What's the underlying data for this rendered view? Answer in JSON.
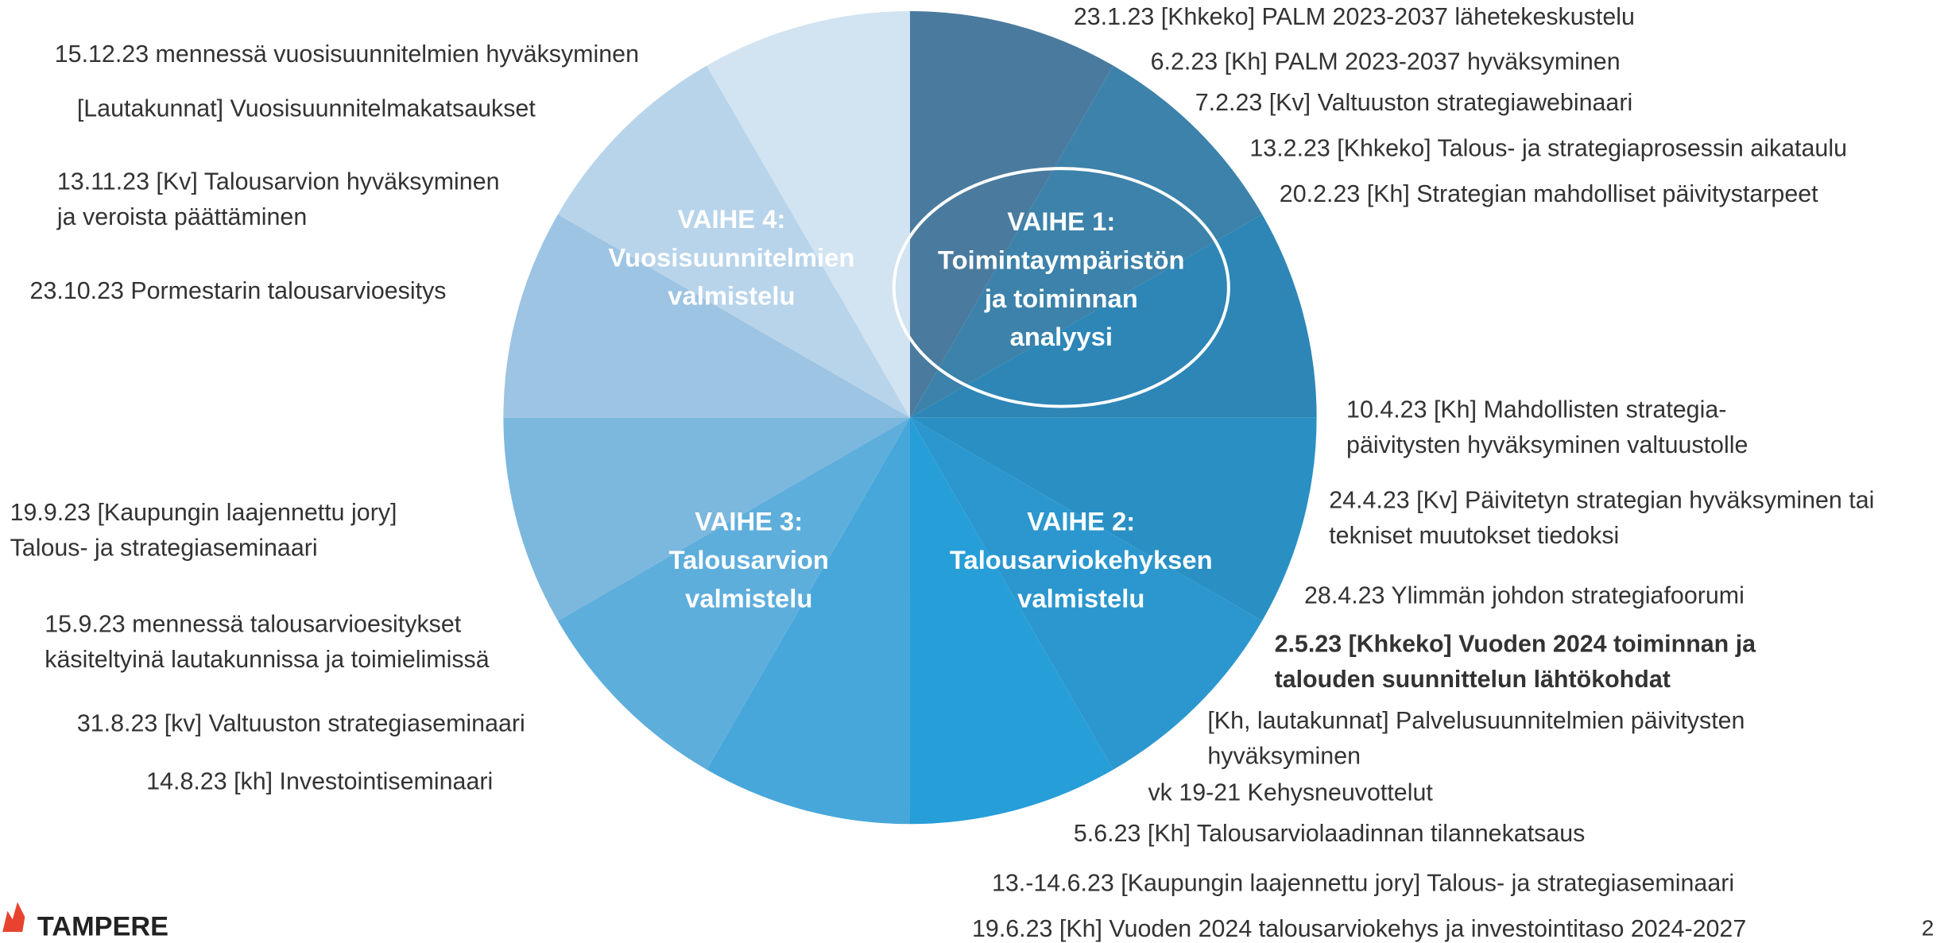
{
  "phases": [
    {
      "lines": [
        "VAIHE 1:",
        "Toimintaympäristön",
        "ja toiminnan",
        "analyysi"
      ]
    },
    {
      "lines": [
        "VAIHE 2:",
        "Talousarviokehyksen",
        "valmistelu"
      ]
    },
    {
      "lines": [
        "VAIHE 3:",
        "Talousarvion",
        "valmistelu"
      ]
    },
    {
      "lines": [
        "VAIHE 4:",
        "Vuosisuunnitelmien",
        "valmistelu"
      ]
    }
  ],
  "events": [
    {
      "lines": [
        "23.1.23 [Khkeko] PALM 2023-2037 lähetekeskustelu"
      ]
    },
    {
      "lines": [
        "6.2.23 [Kh] PALM 2023-2037 hyväksyminen"
      ]
    },
    {
      "lines": [
        "7.2.23 [Kv] Valtuuston strategiawebinaari"
      ]
    },
    {
      "lines": [
        "13.2.23 [Khkeko] Talous- ja strategiaprosessin aikataulu"
      ]
    },
    {
      "lines": [
        "20.2.23 [Kh] Strategian mahdolliset päivitystarpeet"
      ]
    },
    {
      "lines": [
        "10.4.23 [Kh] Mahdollisten strategia-",
        "päivitysten hyväksyminen valtuustolle"
      ]
    },
    {
      "lines": [
        "24.4.23 [Kv] Päivitetyn strategian hyväksyminen tai",
        "tekniset muutokset tiedoksi"
      ]
    },
    {
      "lines": [
        "28.4.23 Ylimmän johdon strategiafoorumi"
      ]
    },
    {
      "lines": [
        "2.5.23 [Khkeko] Vuoden 2024 toiminnan ja",
        "talouden suunnittelun lähtökohdat"
      ]
    },
    {
      "lines": [
        "[Kh, lautakunnat] Palvelusuunnitelmien päivitysten",
        "hyväksyminen"
      ]
    },
    {
      "lines": [
        "vk 19-21 Kehysneuvottelut"
      ]
    },
    {
      "lines": [
        "5.6.23 [Kh] Talousarviolaadinnan tilannekatsaus"
      ]
    },
    {
      "lines": [
        "13.-14.6.23 [Kaupungin laajennettu jory] Talous- ja strategiaseminaari"
      ]
    },
    {
      "lines": [
        "19.6.23 [Kh] Vuoden 2024 talousarviokehys ja investointitaso 2024-2027"
      ]
    },
    {
      "lines": [
        "15.12.23 mennessä vuosisuunnitelmien hyväksyminen"
      ]
    },
    {
      "lines": [
        "[Lautakunnat] Vuosisuunnitelmakatsaukset"
      ]
    },
    {
      "lines": [
        "13.11.23 [Kv] Talousarvion hyväksyminen",
        "ja veroista päättäminen"
      ]
    },
    {
      "lines": [
        "23.10.23 Pormestarin talousarvioesitys"
      ]
    },
    {
      "lines": [
        "19.9.23 [Kaupungin laajennettu jory]",
        "Talous- ja strategiaseminaari"
      ]
    },
    {
      "lines": [
        "15.9.23 mennessä talousarvioesitykset",
        "käsiteltyinä lautakunnissa ja toimielimissä"
      ]
    },
    {
      "lines": [
        "31.8.23 [kv] Valtuuston strategiaseminaari"
      ]
    },
    {
      "lines": [
        "14.8.23 [kh] Investointiseminaari"
      ]
    }
  ],
  "logo": "TAMPERE",
  "page_number": "2"
}
